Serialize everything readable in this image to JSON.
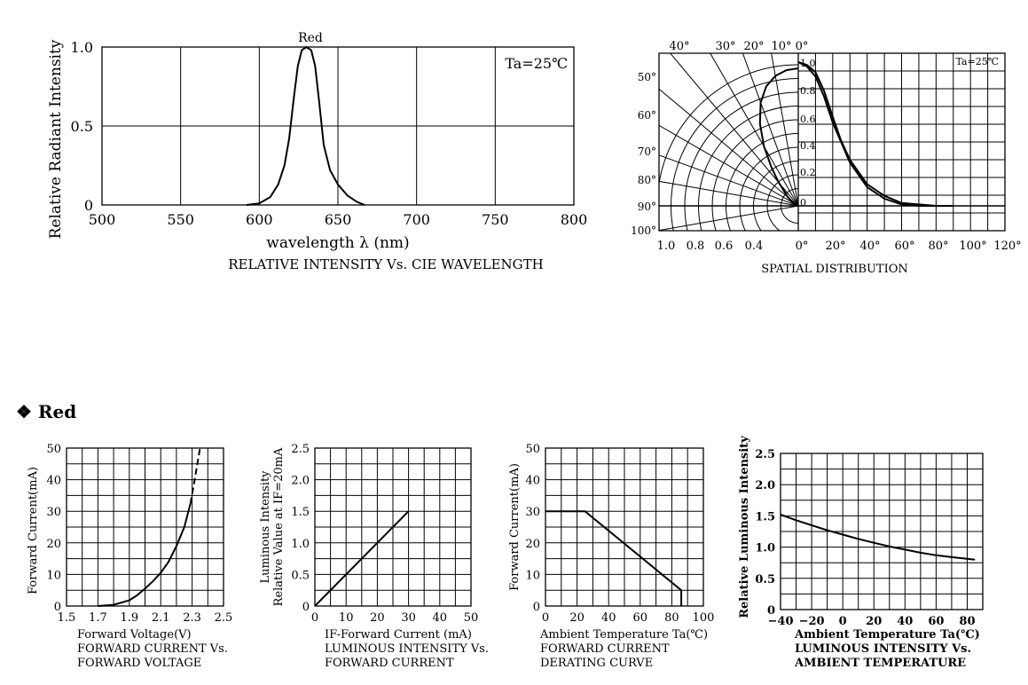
{
  "section_title": "❖ Red",
  "chart_data": [
    {
      "id": "spectrum",
      "type": "line",
      "caption": "RELATIVE INTENSITY Vs. CIE WAVELENGTH",
      "xlabel": "wavelength λ (nm)",
      "ylabel": "Relative Radiant Intensity",
      "annotation": "Ta=25℃",
      "peak_label": "Red",
      "xlim": [
        500,
        800
      ],
      "ylim": [
        0,
        1.0
      ],
      "x_ticks": [
        500,
        550,
        600,
        650,
        700,
        750,
        800
      ],
      "x_tick_labels": [
        "500",
        "550",
        "600",
        "650",
        "700",
        "750",
        "800"
      ],
      "y_ticks": [
        0,
        0.5,
        1.0
      ],
      "y_tick_labels": [
        "0",
        "0.5",
        "1.0"
      ],
      "grid": true,
      "series": [
        {
          "x": [
            592,
            600,
            607,
            612,
            616,
            619,
            622,
            624.5,
            627,
            630,
            633,
            635.5,
            638,
            641,
            645,
            650,
            656,
            662,
            667
          ],
          "y": [
            0,
            0.01,
            0.05,
            0.13,
            0.25,
            0.42,
            0.68,
            0.88,
            0.98,
            1.0,
            0.98,
            0.88,
            0.66,
            0.38,
            0.22,
            0.13,
            0.06,
            0.02,
            0
          ]
        }
      ]
    },
    {
      "id": "spatial",
      "type": "line",
      "caption": "SPATIAL DISTRIBUTION",
      "annotation": "Ta=25℃",
      "angle_labels": [
        "40°",
        "30°",
        "20°",
        "10°",
        "0°"
      ],
      "side_angle_labels": [
        "50°",
        "60°",
        "70°",
        "80°",
        "90°",
        "100°"
      ],
      "radial_labels": [
        "1.0",
        "0.8",
        "0.6",
        "0.4",
        "0.2",
        "0"
      ],
      "x_ticks_left": [
        "1.0",
        "0.8",
        "0.6",
        "0.4"
      ],
      "x_ticks_right": [
        "0°",
        "20°",
        "40°",
        "60°",
        "80°",
        "100°",
        "120°"
      ],
      "grid": true,
      "series": [
        {
          "angle_deg": [
            0,
            5,
            10,
            15,
            20,
            25,
            30,
            35,
            40,
            50,
            60,
            70,
            80,
            90
          ],
          "value": [
            1.0,
            0.99,
            0.96,
            0.9,
            0.8,
            0.66,
            0.5,
            0.34,
            0.22,
            0.1,
            0.05,
            0.02,
            0.01,
            0
          ]
        },
        {
          "x_deg": [
            0,
            5,
            10,
            15,
            20,
            25,
            30,
            40,
            50,
            60,
            70,
            80,
            90
          ],
          "y": [
            1.0,
            0.98,
            0.93,
            0.8,
            0.62,
            0.45,
            0.32,
            0.15,
            0.07,
            0.02,
            0.01,
            0,
            0
          ]
        },
        {
          "x_deg": [
            0,
            5,
            10,
            15,
            20,
            30,
            40,
            50,
            60,
            70,
            80,
            90
          ],
          "y": [
            1.0,
            0.97,
            0.9,
            0.76,
            0.58,
            0.3,
            0.13,
            0.05,
            0.01,
            0,
            0,
            0
          ]
        }
      ]
    },
    {
      "id": "iv",
      "type": "line",
      "caption": [
        "Forward Voltage(V)",
        "FORWARD CURRENT Vs.",
        "FORWARD VOLTAGE"
      ],
      "ylabel": "Forward Current(mA)",
      "xlim": [
        1.5,
        2.5
      ],
      "ylim": [
        0,
        50
      ],
      "x_ticks": [
        1.5,
        1.7,
        1.9,
        2.1,
        2.3,
        2.5
      ],
      "x_tick_labels": [
        "1.5",
        "1.7",
        "1.9",
        "2.1",
        "2.3",
        "2.5"
      ],
      "y_ticks": [
        0,
        10,
        20,
        30,
        40,
        50
      ],
      "y_tick_labels": [
        "0",
        "10",
        "20",
        "30",
        "40",
        "50"
      ],
      "grid": true,
      "series": [
        {
          "name": "solid",
          "x": [
            1.7,
            1.8,
            1.9,
            1.95,
            2.0,
            2.05,
            2.1,
            2.15,
            2.2,
            2.25,
            2.29
          ],
          "y": [
            0,
            0.4,
            1.8,
            3.4,
            5.5,
            7.8,
            10.5,
            14,
            19,
            25,
            32.5
          ]
        },
        {
          "name": "dashed",
          "dashed": true,
          "x": [
            2.29,
            2.32,
            2.35
          ],
          "y": [
            32.5,
            41,
            50
          ]
        }
      ]
    },
    {
      "id": "lum_if",
      "type": "line",
      "caption": [
        "IF-Forward Current (mA)",
        "LUMINOUS INTENSITY Vs.",
        "FORWARD CURRENT"
      ],
      "ylabel": [
        "Luminous Intensity",
        "Relative Value at IF=20mA"
      ],
      "xlim": [
        0,
        50
      ],
      "ylim": [
        0,
        2.5
      ],
      "x_ticks": [
        0,
        10,
        20,
        30,
        40,
        50
      ],
      "x_tick_labels": [
        "0",
        "10",
        "20",
        "30",
        "40",
        "50"
      ],
      "y_ticks": [
        0,
        0.5,
        1.0,
        1.5,
        2.0,
        2.5
      ],
      "y_tick_labels": [
        "0",
        "0.5",
        "1.0",
        "1.5",
        "2.0",
        "2.5"
      ],
      "grid": true,
      "series": [
        {
          "x": [
            0,
            30
          ],
          "y": [
            0,
            1.5
          ]
        }
      ]
    },
    {
      "id": "derating",
      "type": "line",
      "caption": [
        "Ambient Temperature Ta(℃)",
        "FORWARD CURRENT",
        "DERATING CURVE"
      ],
      "ylabel": "Forward Current(mA)",
      "xlim": [
        0,
        100
      ],
      "ylim": [
        0,
        50
      ],
      "x_ticks": [
        0,
        20,
        40,
        60,
        80,
        100
      ],
      "x_tick_labels": [
        "0",
        "20",
        "40",
        "60",
        "80",
        "100"
      ],
      "y_ticks": [
        0,
        10,
        20,
        30,
        40,
        50
      ],
      "y_tick_labels": [
        "0",
        "10",
        "20",
        "30",
        "40",
        "50"
      ],
      "grid": true,
      "series": [
        {
          "x": [
            0,
            25,
            86,
            86
          ],
          "y": [
            30,
            30,
            5,
            0
          ]
        }
      ]
    },
    {
      "id": "lum_ta",
      "type": "line",
      "caption": [
        "Ambient Temperature Ta(℃)",
        "LUMINOUS INTENSITY Vs.",
        "AMBIENT TEMPERATURE"
      ],
      "ylabel": "Relative Luminous Intensity",
      "xlim": [
        -40,
        90
      ],
      "ylim": [
        0,
        2.5
      ],
      "x_ticks": [
        -40,
        -20,
        0,
        20,
        40,
        60,
        80
      ],
      "x_tick_labels": [
        "−40",
        "−20",
        "0",
        "20",
        "40",
        "60",
        "80"
      ],
      "y_ticks": [
        0,
        0.5,
        1.0,
        1.5,
        2.0,
        2.5
      ],
      "y_tick_labels": [
        "0",
        "0.5",
        "1.0",
        "1.5",
        "2.0",
        "2.5"
      ],
      "grid": true,
      "series": [
        {
          "x": [
            -40,
            -30,
            -20,
            -10,
            0,
            10,
            20,
            30,
            40,
            50,
            60,
            70,
            85
          ],
          "y": [
            1.52,
            1.43,
            1.35,
            1.27,
            1.2,
            1.13,
            1.07,
            1.01,
            0.96,
            0.91,
            0.87,
            0.84,
            0.8
          ]
        }
      ]
    }
  ]
}
